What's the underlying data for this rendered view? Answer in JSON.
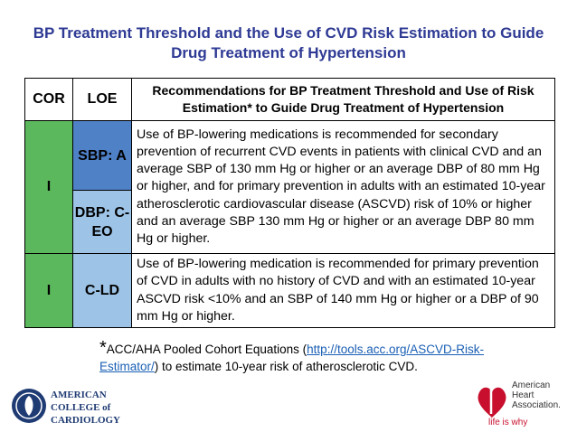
{
  "title": "BP Treatment Threshold and the Use of CVD Risk Estimation to Guide Drug Treatment of Hypertension",
  "table": {
    "header": {
      "cor": "COR",
      "loe": "LOE",
      "recommendation": "Recommendations for BP Treatment Threshold and Use of Risk Estimation* to Guide Drug Treatment of Hypertension"
    },
    "rows": [
      {
        "cor": "I",
        "loe": [
          "SBP: A",
          "DBP: C-EO"
        ],
        "recommendation": "Use of BP-lowering medications is recommended for secondary prevention of recurrent CVD events  in patients with clinical CVD and an average SBP of 130 mm Hg or higher or an average DBP of 80 mm Hg or higher, and for primary prevention in adults with an estimated 10-year atherosclerotic cardiovascular disease (ASCVD) risk of 10% or higher and an average SBP 130 mm Hg or higher or an average DBP 80 mm Hg or higher."
      },
      {
        "cor": "I",
        "loe": [
          "C-LD"
        ],
        "recommendation": "Use of BP-lowering medication is recommended for primary prevention of CVD in adults with no history of CVD and with an estimated 10-year ASCVD risk <10% and an SBP of 140 mm Hg or higher or a DBP of 90 mm Hg or higher."
      }
    ]
  },
  "footnote": {
    "marker": "*",
    "text_before": "ACC/AHA Pooled Cohort Equations (",
    "link": "http://tools.acc.org/ASCVD-Risk-Estimator/",
    "text_after": ") to estimate 10-year risk of atherosclerotic CVD."
  },
  "logos": {
    "acc": [
      "AMERICAN",
      "COLLEGE of",
      "CARDIOLOGY"
    ],
    "aha": [
      "American",
      "Heart",
      "Association.",
      "life is why"
    ]
  }
}
